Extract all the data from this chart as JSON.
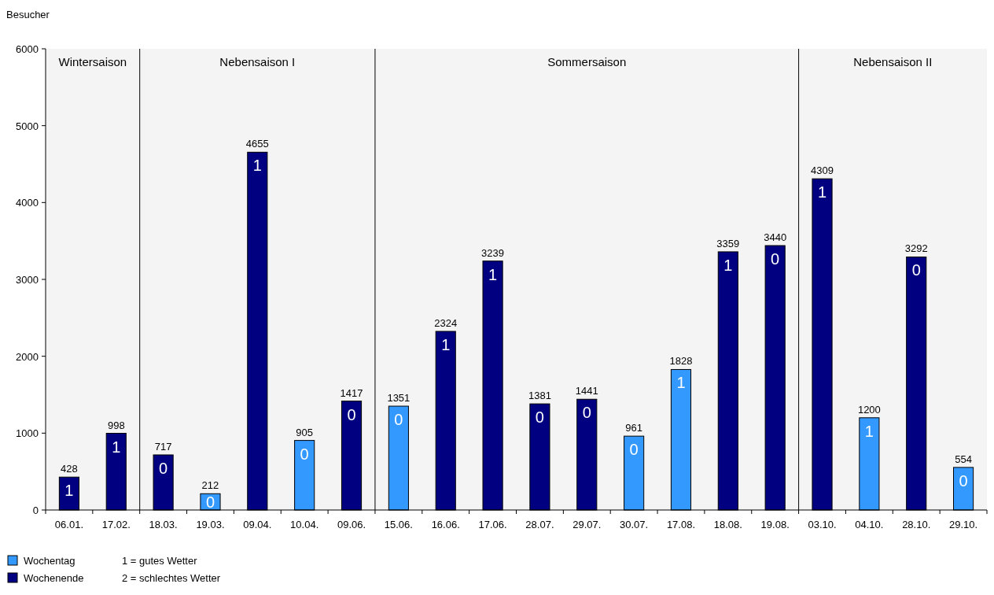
{
  "chart_data": {
    "type": "bar",
    "ylabel": "Besucher",
    "categories": [
      "06.01.",
      "17.02.",
      "18.03.",
      "19.03.",
      "09.04.",
      "10.04.",
      "09.06.",
      "15.06.",
      "16.06.",
      "17.06.",
      "28.07.",
      "29.07.",
      "30.07.",
      "17.08.",
      "18.08.",
      "19.08.",
      "03.10.",
      "04.10.",
      "28.10.",
      "29.10."
    ],
    "series": [
      {
        "name": "Wochentag",
        "color": "#3399ff",
        "values": [
          null,
          null,
          null,
          212,
          null,
          905,
          null,
          1351,
          null,
          null,
          null,
          null,
          961,
          1828,
          null,
          null,
          null,
          1200,
          null,
          554
        ]
      },
      {
        "name": "Wochenende",
        "color": "#000080",
        "values": [
          428,
          998,
          717,
          null,
          4655,
          null,
          1417,
          null,
          2324,
          3239,
          1381,
          1441,
          null,
          null,
          3359,
          3440,
          4309,
          null,
          3292,
          null
        ]
      }
    ],
    "ylim": [
      0,
      6000
    ],
    "yticks": [
      0,
      1000,
      2000,
      3000,
      4000,
      5000,
      6000
    ],
    "grid": false,
    "data_labels": true,
    "legend": "bottom left",
    "bands": [
      {
        "axis": "x",
        "from": "06.01.",
        "to": "17.02.",
        "label": "Wintersaison",
        "color": "#f4f4f4"
      },
      {
        "axis": "x",
        "from": "18.03.",
        "to": "09.06.",
        "label": "Nebensaison I",
        "color": "#f4f4f4"
      },
      {
        "axis": "x",
        "from": "15.06.",
        "to": "19.08.",
        "label": "Sommersaison",
        "color": "#f4f4f4"
      },
      {
        "axis": "x",
        "from": "03.10.",
        "to": "29.10.",
        "label": "Nebensaison II",
        "color": "#f4f4f4"
      }
    ],
    "annotations": [
      "1 = gutes Wetter",
      "2 = schlechtes Wetter",
      {
        "text": "1",
        "x": "06.01.",
        "y": 428
      },
      {
        "text": "1",
        "x": "17.02.",
        "y": 998
      },
      {
        "text": "0",
        "x": "18.03.",
        "y": 717
      },
      {
        "text": "0",
        "x": "19.03.",
        "y": 212
      },
      {
        "text": "1",
        "x": "09.04.",
        "y": 4655
      },
      {
        "text": "0",
        "x": "10.04.",
        "y": 905
      },
      {
        "text": "0",
        "x": "09.06.",
        "y": 1417
      },
      {
        "text": "0",
        "x": "15.06.",
        "y": 1351
      },
      {
        "text": "1",
        "x": "16.06.",
        "y": 2324
      },
      {
        "text": "1",
        "x": "17.06.",
        "y": 3239
      },
      {
        "text": "0",
        "x": "28.07.",
        "y": 1381
      },
      {
        "text": "0",
        "x": "29.07.",
        "y": 1441
      },
      {
        "text": "0",
        "x": "30.07.",
        "y": 961
      },
      {
        "text": "1",
        "x": "17.08.",
        "y": 1828
      },
      {
        "text": "1",
        "x": "18.08.",
        "y": 3359
      },
      {
        "text": "0",
        "x": "19.08.",
        "y": 3440
      },
      {
        "text": "1",
        "x": "03.10.",
        "y": 4309
      },
      {
        "text": "1",
        "x": "04.10.",
        "y": 1200
      },
      {
        "text": "0",
        "x": "28.10.",
        "y": 3292
      },
      {
        "text": "0",
        "x": "29.10.",
        "y": 554
      }
    ]
  }
}
